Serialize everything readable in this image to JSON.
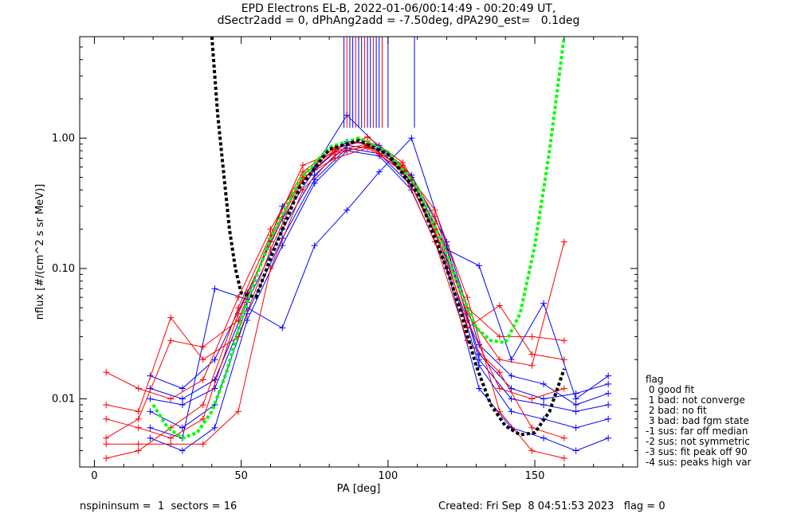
{
  "title_line1": "EPD Electrons EL-B, 2022-01-06/00:14:49 - 00:20:49 UT,",
  "title_line2": "dSectr2add = 0, dPhAng2add = -7.50deg, dPA290_est=   0.1deg",
  "footer_left": "nspininsum =  1  sectors = 16",
  "footer_right": "Created: Fri Sep  8 04:51:53 2023   flag = 0",
  "legend": {
    "title": "flag",
    "items": [
      " 0 good fit",
      " 1 bad: not converge",
      " 2 bad: no fit",
      " 3 bad: bad fgm state",
      "-1 sus: far off median",
      "-2 sus: not symmetric",
      "-3 sus: fit peak off 90",
      "-4 sus: peaks high var"
    ]
  },
  "chart_data": {
    "type": "line",
    "xlabel": "PA [deg]",
    "ylabel": "nflux [#/(cm^2 s sr MeV)]",
    "xlim": [
      -5,
      185
    ],
    "ylim": [
      0.003,
      6.0
    ],
    "yscale": "log",
    "x_ticks": [
      0,
      50,
      100,
      150
    ],
    "y_ticks": [
      0.01,
      0.1,
      1.0
    ],
    "y_tick_labels": [
      "0.01",
      "0.10",
      "1.00"
    ],
    "colors": {
      "series_a": "#ff0000",
      "series_b": "#0000ff",
      "fit_green": "#00ff00",
      "fit_black": "#000000"
    },
    "series": [
      {
        "color": "#0000ff",
        "x": [
          19,
          30,
          41,
          52,
          64,
          75,
          86,
          97,
          108,
          120,
          131,
          142,
          153,
          164,
          175
        ],
        "y": [
          0.012,
          0.01,
          0.014,
          0.055,
          0.2,
          0.52,
          0.88,
          0.82,
          0.47,
          0.14,
          0.022,
          0.012,
          0.01,
          0.011,
          0.013
        ]
      },
      {
        "color": "#0000ff",
        "x": [
          19,
          30,
          41,
          52,
          64,
          75,
          86,
          97,
          108,
          120,
          131,
          142,
          153,
          164,
          175
        ],
        "y": [
          0.008,
          0.006,
          0.009,
          0.045,
          0.17,
          0.48,
          0.84,
          0.76,
          0.43,
          0.12,
          0.018,
          0.008,
          0.007,
          0.006,
          0.007
        ]
      },
      {
        "color": "#0000ff",
        "x": [
          19,
          30,
          41,
          52,
          64,
          75,
          86,
          97,
          108,
          120,
          131,
          142,
          153,
          164,
          175
        ],
        "y": [
          0.015,
          0.012,
          0.02,
          0.065,
          0.24,
          0.57,
          0.94,
          0.88,
          0.52,
          0.16,
          0.026,
          0.015,
          0.013,
          0.009,
          0.011
        ]
      },
      {
        "color": "#0000ff",
        "x": [
          19,
          30,
          41,
          52,
          64,
          75,
          86,
          97,
          108,
          120,
          131,
          142,
          153,
          164,
          175
        ],
        "y": [
          0.005,
          0.004,
          0.006,
          0.04,
          0.15,
          0.45,
          0.8,
          0.73,
          0.4,
          0.1,
          0.012,
          0.006,
          0.005,
          0.004,
          0.005
        ]
      },
      {
        "color": "#0000ff",
        "x": [
          19,
          30,
          41,
          52,
          64,
          75,
          86,
          97,
          108,
          120,
          131,
          142,
          153,
          164,
          175
        ],
        "y": [
          0.01,
          0.009,
          0.012,
          0.05,
          0.035,
          0.15,
          0.28,
          0.55,
          1.0,
          0.15,
          0.02,
          0.01,
          0.009,
          0.008,
          0.009
        ]
      },
      {
        "color": "#0000ff",
        "x": [
          19,
          30,
          41,
          52,
          64,
          75,
          86,
          97,
          108,
          120,
          131,
          142,
          153,
          164,
          175
        ],
        "y": [
          0.006,
          0.005,
          0.07,
          0.058,
          0.3,
          0.6,
          1.5,
          0.85,
          0.5,
          0.14,
          0.105,
          0.02,
          0.054,
          0.01,
          0.015
        ]
      },
      {
        "color": "#ff0000",
        "x": [
          4,
          15,
          26,
          37,
          49,
          60,
          71,
          82,
          93,
          105,
          116,
          127,
          138,
          149,
          160
        ],
        "y": [
          0.016,
          0.012,
          0.01,
          0.014,
          0.06,
          0.2,
          0.55,
          0.85,
          0.95,
          0.62,
          0.22,
          0.045,
          0.02,
          0.018,
          0.16
        ]
      },
      {
        "color": "#ff0000",
        "x": [
          4,
          15,
          26,
          37,
          49,
          60,
          71,
          82,
          93,
          105,
          116,
          127,
          138,
          149,
          160
        ],
        "y": [
          0.009,
          0.008,
          0.042,
          0.02,
          0.03,
          0.14,
          0.48,
          0.8,
          0.9,
          0.58,
          0.19,
          0.035,
          0.052,
          0.022,
          0.02
        ]
      },
      {
        "color": "#ff0000",
        "x": [
          4,
          15,
          26,
          37,
          49,
          60,
          71,
          82,
          93,
          105,
          116,
          127,
          138,
          149,
          160
        ],
        "y": [
          0.0045,
          0.0045,
          0.0045,
          0.0045,
          0.008,
          0.1,
          0.4,
          0.75,
          0.88,
          0.55,
          0.16,
          0.028,
          0.016,
          0.006,
          0.005
        ]
      },
      {
        "color": "#ff0000",
        "x": [
          4,
          15,
          26,
          37,
          49,
          60,
          71,
          82,
          93,
          105,
          116,
          127,
          138,
          149,
          160
        ],
        "y": [
          0.005,
          0.007,
          0.028,
          0.025,
          0.04,
          0.17,
          0.52,
          0.82,
          1.02,
          0.65,
          0.25,
          0.05,
          0.03,
          0.03,
          0.028
        ]
      },
      {
        "color": "#ff0000",
        "x": [
          4,
          15,
          26,
          37,
          49,
          60,
          71,
          82,
          93,
          105,
          116,
          127,
          138,
          149,
          160
        ],
        "y": [
          0.0035,
          0.004,
          0.006,
          0.009,
          0.05,
          0.18,
          0.62,
          0.78,
          0.86,
          0.6,
          0.28,
          0.06,
          0.008,
          0.004,
          0.0035
        ]
      },
      {
        "color": "#ff0000",
        "x": [
          4,
          15,
          26,
          37,
          49,
          60,
          71,
          82,
          93,
          105,
          116,
          127,
          138,
          149,
          160
        ],
        "y": [
          0.007,
          0.006,
          0.005,
          0.007,
          0.045,
          0.16,
          0.5,
          0.7,
          0.84,
          0.57,
          0.2,
          0.04,
          0.012,
          0.01,
          0.012
        ]
      }
    ],
    "fits": [
      {
        "color": "#00ff00",
        "x": [
          20,
          25,
          30,
          35,
          40,
          45,
          50,
          55,
          60,
          70,
          80,
          90,
          100,
          110,
          120,
          125,
          130,
          135,
          140,
          145,
          150,
          155,
          160
        ],
        "y": [
          0.009,
          0.006,
          0.005,
          0.0055,
          0.008,
          0.016,
          0.04,
          0.085,
          0.17,
          0.48,
          0.85,
          1.0,
          0.78,
          0.42,
          0.13,
          0.065,
          0.035,
          0.028,
          0.027,
          0.045,
          0.15,
          0.8,
          6.0
        ]
      },
      {
        "color": "#000000",
        "x": [
          40,
          42,
          44,
          46,
          48,
          50,
          55,
          60,
          70,
          80,
          90,
          100,
          110,
          120,
          125,
          130,
          135,
          140,
          145,
          150,
          155,
          160
        ],
        "y": [
          6.0,
          1.5,
          0.55,
          0.2,
          0.1,
          0.065,
          0.06,
          0.12,
          0.42,
          0.82,
          0.96,
          0.75,
          0.38,
          0.1,
          0.045,
          0.018,
          0.009,
          0.0062,
          0.0053,
          0.0055,
          0.008,
          0.017
        ]
      }
    ],
    "saturated_pa": [
      85,
      86,
      87,
      88,
      89,
      90,
      91,
      92,
      93,
      94,
      95,
      96,
      97,
      98,
      100,
      109
    ]
  }
}
